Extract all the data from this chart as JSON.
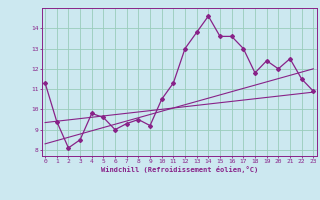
{
  "xlabel": "Windchill (Refroidissement éolien,°C)",
  "bg_color": "#cce8f0",
  "line_color": "#882288",
  "grid_color": "#99ccbb",
  "spine_color": "#882288",
  "x_hours": [
    0,
    1,
    2,
    3,
    4,
    5,
    6,
    7,
    8,
    9,
    10,
    11,
    12,
    13,
    14,
    15,
    16,
    17,
    18,
    19,
    20,
    21,
    22,
    23
  ],
  "line1": [
    11.3,
    9.4,
    8.1,
    8.5,
    9.8,
    9.6,
    9.0,
    9.3,
    9.5,
    9.2,
    10.5,
    11.3,
    13.0,
    13.8,
    14.6,
    13.6,
    13.6,
    13.0,
    11.8,
    12.4,
    12.0,
    12.5,
    11.5,
    10.9
  ],
  "trend1_x": [
    0,
    23
  ],
  "trend1_y": [
    9.35,
    10.85
  ],
  "trend2_x": [
    0,
    23
  ],
  "trend2_y": [
    8.3,
    12.0
  ],
  "ylim": [
    7.7,
    15.0
  ],
  "xlim": [
    -0.3,
    23.3
  ],
  "yticks": [
    8,
    9,
    10,
    11,
    12,
    13,
    14
  ],
  "xticks": [
    0,
    1,
    2,
    3,
    4,
    5,
    6,
    7,
    8,
    9,
    10,
    11,
    12,
    13,
    14,
    15,
    16,
    17,
    18,
    19,
    20,
    21,
    22,
    23
  ]
}
